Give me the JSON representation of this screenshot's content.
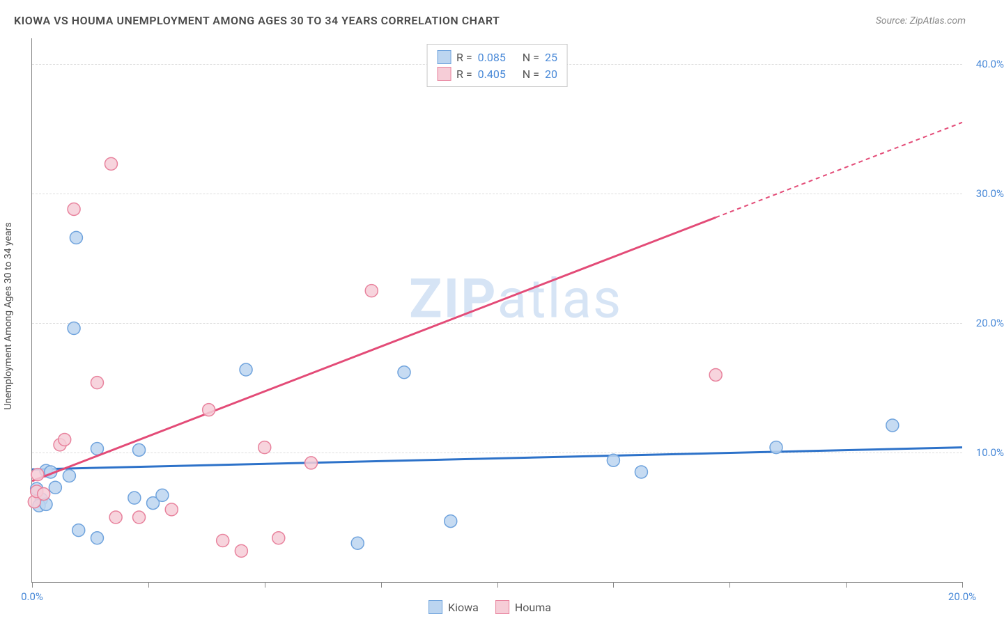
{
  "header": {
    "title": "KIOWA VS HOUMA UNEMPLOYMENT AMONG AGES 30 TO 34 YEARS CORRELATION CHART",
    "source": "Source: ZipAtlas.com"
  },
  "ylabel": "Unemployment Among Ages 30 to 34 years",
  "watermark_a": "ZIP",
  "watermark_b": "atlas",
  "chart": {
    "type": "scatter",
    "xlim": [
      0,
      20
    ],
    "ylim": [
      0,
      42
    ],
    "background_color": "#ffffff",
    "grid_color": "#dddddd",
    "yticks": [
      {
        "v": 10,
        "label": "10.0%"
      },
      {
        "v": 20,
        "label": "20.0%"
      },
      {
        "v": 30,
        "label": "30.0%"
      },
      {
        "v": 40,
        "label": "40.0%"
      }
    ],
    "xticks_major": [
      0,
      20
    ],
    "xticks_minor": [
      2.5,
      5,
      7.5,
      10,
      12.5,
      15,
      17.5
    ],
    "xtick_labels": [
      {
        "v": 0,
        "label": "0.0%"
      },
      {
        "v": 20,
        "label": "20.0%"
      }
    ],
    "series": [
      {
        "name": "Kiowa",
        "fill": "#bcd5f0",
        "stroke": "#6fa3dd",
        "marker_radius": 9,
        "R": "0.085",
        "N": "25",
        "trend": {
          "x1": 0,
          "y1": 8.7,
          "x2": 20,
          "y2": 10.4,
          "solid_to_x": 20
        },
        "trend_color": "#2d72c9",
        "points": [
          {
            "x": 0.1,
            "y": 7.2
          },
          {
            "x": 0.2,
            "y": 6.4
          },
          {
            "x": 0.15,
            "y": 5.9
          },
          {
            "x": 0.3,
            "y": 6.0
          },
          {
            "x": 0.3,
            "y": 8.6
          },
          {
            "x": 0.4,
            "y": 8.5
          },
          {
            "x": 0.5,
            "y": 7.3
          },
          {
            "x": 0.8,
            "y": 8.2
          },
          {
            "x": 0.9,
            "y": 19.6
          },
          {
            "x": 0.95,
            "y": 26.6
          },
          {
            "x": 1.0,
            "y": 4.0
          },
          {
            "x": 1.4,
            "y": 3.4
          },
          {
            "x": 1.4,
            "y": 10.3
          },
          {
            "x": 2.2,
            "y": 6.5
          },
          {
            "x": 2.3,
            "y": 10.2
          },
          {
            "x": 2.6,
            "y": 6.1
          },
          {
            "x": 2.8,
            "y": 6.7
          },
          {
            "x": 4.6,
            "y": 16.4
          },
          {
            "x": 7.0,
            "y": 3.0
          },
          {
            "x": 8.0,
            "y": 16.2
          },
          {
            "x": 9.0,
            "y": 4.7
          },
          {
            "x": 12.5,
            "y": 9.4
          },
          {
            "x": 13.1,
            "y": 8.5
          },
          {
            "x": 16.0,
            "y": 10.4
          },
          {
            "x": 18.5,
            "y": 12.1
          }
        ]
      },
      {
        "name": "Houma",
        "fill": "#f6cdd7",
        "stroke": "#e8829d",
        "marker_radius": 9,
        "R": "0.405",
        "N": "20",
        "trend": {
          "x1": 0,
          "y1": 7.8,
          "x2": 20,
          "y2": 35.5,
          "solid_to_x": 14.7
        },
        "trend_color": "#e34b77",
        "points": [
          {
            "x": 0.05,
            "y": 6.2
          },
          {
            "x": 0.1,
            "y": 7.0
          },
          {
            "x": 0.12,
            "y": 8.3
          },
          {
            "x": 0.25,
            "y": 6.8
          },
          {
            "x": 0.6,
            "y": 10.6
          },
          {
            "x": 0.7,
            "y": 11.0
          },
          {
            "x": 0.9,
            "y": 28.8
          },
          {
            "x": 1.4,
            "y": 15.4
          },
          {
            "x": 1.7,
            "y": 32.3
          },
          {
            "x": 1.8,
            "y": 5.0
          },
          {
            "x": 2.3,
            "y": 5.0
          },
          {
            "x": 3.0,
            "y": 5.6
          },
          {
            "x": 3.8,
            "y": 13.3
          },
          {
            "x": 4.1,
            "y": 3.2
          },
          {
            "x": 4.5,
            "y": 2.4
          },
          {
            "x": 5.0,
            "y": 10.4
          },
          {
            "x": 5.3,
            "y": 3.4
          },
          {
            "x": 6.0,
            "y": 9.2
          },
          {
            "x": 7.3,
            "y": 22.5
          },
          {
            "x": 14.7,
            "y": 16.0
          }
        ]
      }
    ]
  },
  "legend_bottom": [
    {
      "label": "Kiowa",
      "fill": "#bcd5f0",
      "stroke": "#6fa3dd"
    },
    {
      "label": "Houma",
      "fill": "#f6cdd7",
      "stroke": "#e8829d"
    }
  ],
  "legend_top_labels": {
    "R": "R =",
    "N": "N ="
  }
}
